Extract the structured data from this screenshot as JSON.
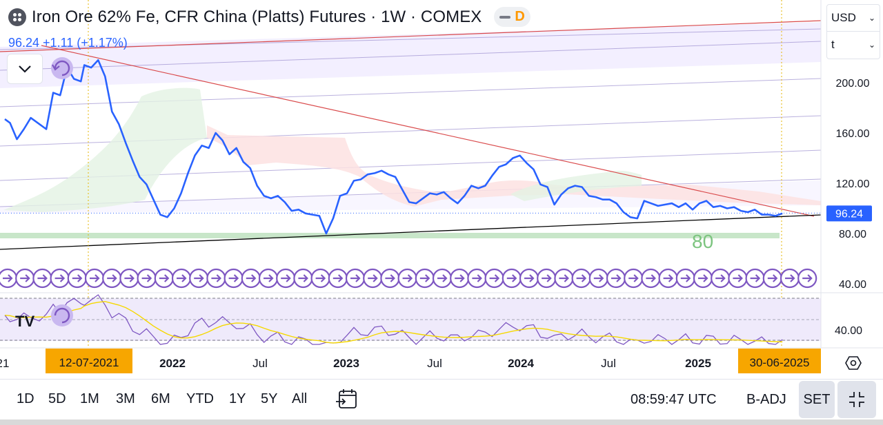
{
  "header": {
    "title": "Iron Ore 62% Fe, CFR China (Platts) Futures · 1W · COMEX",
    "data_badge": "D",
    "price_line": "96.24  +1.11 (+1.17%)",
    "accent": "#2962ff"
  },
  "selectors": {
    "currency": "USD",
    "unit": "t"
  },
  "bottom": {
    "ranges": [
      "1D",
      "5D",
      "1M",
      "3M",
      "6M",
      "YTD",
      "1Y",
      "5Y",
      "All"
    ],
    "clock": "08:59:47 UTC",
    "badj": "B-ADJ",
    "set": "SET"
  },
  "chart_data": {
    "type": "line",
    "y_ticks": [
      "200.00",
      "160.00",
      "120.00",
      "80.00",
      "40.00"
    ],
    "ylim": [
      26,
      224
    ],
    "x_labels": [
      "21",
      "2022",
      "Jul",
      "2023",
      "Jul",
      "2024",
      "Jul",
      "2025"
    ],
    "x_label_bold": [
      false,
      true,
      false,
      true,
      false,
      true,
      false,
      true
    ],
    "marker_start": "12-07-2021",
    "marker_end": "30-06-2025",
    "last_price": "96.24",
    "annotation": "80",
    "oscillator_level": "40.00",
    "colors": {
      "price": "#2962ff",
      "resistance": "#d9494a",
      "support": "#000000",
      "channel": "#9c8fd0",
      "oscillator": "#7e57c2",
      "signal": "#f5d800",
      "marker_bg": "#f7a600",
      "zone": "#c8e6c9"
    },
    "series": [
      {
        "values": [
          [
            2021.0,
            171
          ],
          [
            2021.03,
            168
          ],
          [
            2021.07,
            155
          ],
          [
            2021.11,
            163
          ],
          [
            2021.15,
            172
          ],
          [
            2021.2,
            167
          ],
          [
            2021.24,
            163
          ],
          [
            2021.28,
            192
          ],
          [
            2021.32,
            190
          ],
          [
            2021.36,
            212
          ],
          [
            2021.4,
            203
          ],
          [
            2021.44,
            201
          ],
          [
            2021.46,
            214
          ],
          [
            2021.5,
            212
          ],
          [
            2021.54,
            218
          ],
          [
            2021.58,
            205
          ],
          [
            2021.62,
            177
          ],
          [
            2021.66,
            167
          ],
          [
            2021.7,
            152
          ],
          [
            2021.74,
            138
          ],
          [
            2021.78,
            125
          ],
          [
            2021.82,
            119
          ],
          [
            2021.86,
            107
          ],
          [
            2021.9,
            95
          ],
          [
            2021.94,
            93
          ],
          [
            2021.98,
            100
          ],
          [
            2022.02,
            112
          ],
          [
            2022.06,
            128
          ],
          [
            2022.1,
            142
          ],
          [
            2022.14,
            150
          ],
          [
            2022.18,
            148
          ],
          [
            2022.22,
            160
          ],
          [
            2022.26,
            154
          ],
          [
            2022.3,
            143
          ],
          [
            2022.34,
            148
          ],
          [
            2022.38,
            137
          ],
          [
            2022.42,
            132
          ],
          [
            2022.46,
            118
          ],
          [
            2022.5,
            110
          ],
          [
            2022.54,
            108
          ],
          [
            2022.58,
            110
          ],
          [
            2022.62,
            105
          ],
          [
            2022.66,
            98
          ],
          [
            2022.7,
            99
          ],
          [
            2022.74,
            96
          ],
          [
            2022.78,
            95
          ],
          [
            2022.82,
            94
          ],
          [
            2022.86,
            80
          ],
          [
            2022.9,
            92
          ],
          [
            2022.94,
            110
          ],
          [
            2022.98,
            112
          ],
          [
            2023.02,
            122
          ],
          [
            2023.06,
            123
          ],
          [
            2023.1,
            127
          ],
          [
            2023.14,
            128
          ],
          [
            2023.18,
            130
          ],
          [
            2023.22,
            127
          ],
          [
            2023.26,
            125
          ],
          [
            2023.3,
            115
          ],
          [
            2023.34,
            105
          ],
          [
            2023.38,
            104
          ],
          [
            2023.42,
            108
          ],
          [
            2023.46,
            112
          ],
          [
            2023.5,
            111
          ],
          [
            2023.54,
            113
          ],
          [
            2023.58,
            108
          ],
          [
            2023.62,
            104
          ],
          [
            2023.66,
            110
          ],
          [
            2023.7,
            118
          ],
          [
            2023.74,
            116
          ],
          [
            2023.78,
            118
          ],
          [
            2023.82,
            126
          ],
          [
            2023.86,
            133
          ],
          [
            2023.9,
            135
          ],
          [
            2023.94,
            140
          ],
          [
            2023.98,
            142
          ],
          [
            2024.02,
            136
          ],
          [
            2024.06,
            131
          ],
          [
            2024.1,
            119
          ],
          [
            2024.14,
            117
          ],
          [
            2024.18,
            103
          ],
          [
            2024.22,
            111
          ],
          [
            2024.26,
            116
          ],
          [
            2024.3,
            118
          ],
          [
            2024.34,
            117
          ],
          [
            2024.38,
            110
          ],
          [
            2024.42,
            109
          ],
          [
            2024.46,
            107
          ],
          [
            2024.5,
            107
          ],
          [
            2024.54,
            104
          ],
          [
            2024.58,
            97
          ],
          [
            2024.62,
            93
          ],
          [
            2024.66,
            92
          ],
          [
            2024.7,
            106
          ],
          [
            2024.74,
            104
          ],
          [
            2024.78,
            102
          ],
          [
            2024.82,
            103
          ],
          [
            2024.86,
            104
          ],
          [
            2024.9,
            101
          ],
          [
            2024.94,
            104
          ],
          [
            2024.98,
            99
          ],
          [
            2025.02,
            104
          ],
          [
            2025.06,
            106
          ],
          [
            2025.1,
            101
          ],
          [
            2025.14,
            102
          ],
          [
            2025.18,
            100
          ],
          [
            2025.22,
            101
          ],
          [
            2025.26,
            98
          ],
          [
            2025.3,
            97
          ],
          [
            2025.34,
            99
          ],
          [
            2025.38,
            95
          ],
          [
            2025.42,
            95
          ],
          [
            2025.46,
            94
          ],
          [
            2025.5,
            96
          ]
        ]
      }
    ]
  }
}
